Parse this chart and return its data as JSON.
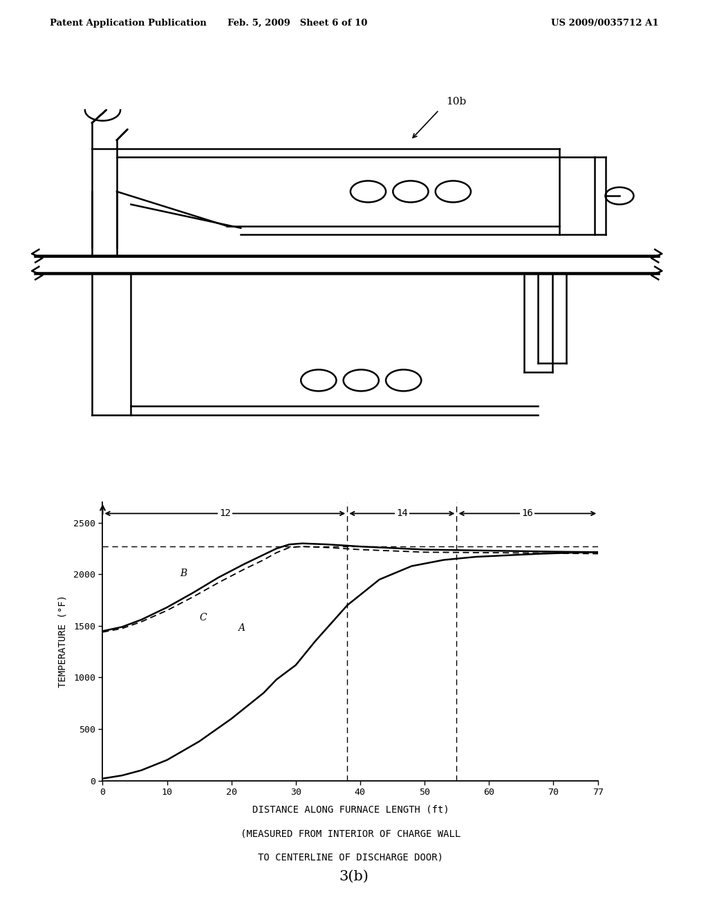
{
  "header_left": "Patent Application Publication",
  "header_center": "Feb. 5, 2009   Sheet 6 of 10",
  "header_right": "US 2009/0035712 A1",
  "label_10b": "10b",
  "curve_A_x": [
    0,
    3,
    6,
    10,
    15,
    20,
    25,
    27,
    30,
    33,
    38,
    43,
    48,
    53,
    58,
    63,
    68,
    73,
    77
  ],
  "curve_A_y": [
    20,
    50,
    100,
    200,
    380,
    600,
    850,
    980,
    1120,
    1350,
    1700,
    1950,
    2080,
    2140,
    2170,
    2185,
    2200,
    2210,
    2215
  ],
  "curve_B_x": [
    0,
    3,
    6,
    10,
    14,
    18,
    22,
    25,
    27,
    29,
    31,
    35,
    40,
    50,
    60,
    70,
    77
  ],
  "curve_B_y": [
    1450,
    1490,
    1560,
    1680,
    1820,
    1970,
    2100,
    2190,
    2250,
    2290,
    2300,
    2290,
    2270,
    2240,
    2230,
    2220,
    2215
  ],
  "curve_C_x": [
    0,
    3,
    6,
    10,
    14,
    18,
    22,
    25,
    27,
    29,
    31,
    35,
    40,
    50,
    60,
    70,
    77
  ],
  "curve_C_y": [
    1440,
    1475,
    1540,
    1650,
    1780,
    1920,
    2050,
    2140,
    2210,
    2260,
    2270,
    2260,
    2240,
    2215,
    2210,
    2205,
    2200
  ],
  "dashed_line_y": 2270,
  "zone12_end": 38,
  "zone14_end": 55,
  "ylabel": "TEMPERATURE (°F)",
  "xlabel_line1": "DISTANCE ALONG FURNACE LENGTH (ft)",
  "xlabel_line2": "(MEASURED FROM INTERIOR OF CHARGE WALL",
  "xlabel_line3": "TO CENTERLINE OF DISCHARGE DOOR)",
  "fig_label": "3(b)",
  "yticks": [
    0,
    500,
    1000,
    1500,
    2000,
    2500
  ],
  "xticks": [
    0,
    10,
    20,
    30,
    40,
    50,
    60,
    70,
    77
  ],
  "xmax": 77,
  "ymax": 2700,
  "bg_color": "#ffffff"
}
